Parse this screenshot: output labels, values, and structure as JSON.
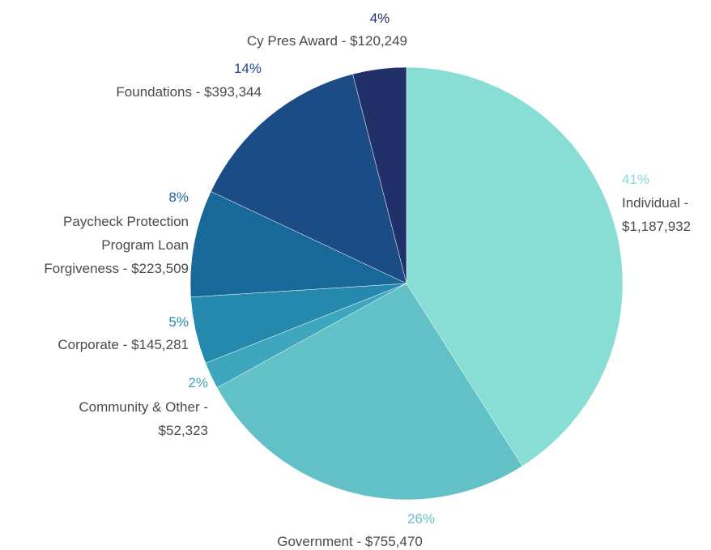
{
  "chart_data": {
    "type": "pie",
    "categories": [
      "Individual -\n$1,187,932",
      "Government - $755,470",
      "Community & Other -\n$52,323",
      "Corporate - $145,281",
      "Paycheck Protection\nProgram Loan\nForgiveness - $223,509",
      "Foundations - $393,344",
      "Cy Pres Award - $120,249"
    ],
    "values": [
      41,
      26,
      2,
      5,
      8,
      14,
      4
    ],
    "value_labels": [
      "41%",
      "26%",
      "2%",
      "5%",
      "8%",
      "14%",
      "4%"
    ],
    "colors": [
      "#88ddd5",
      "#62c1c7",
      "#3ea6bd",
      "#2589ae",
      "#18689a",
      "#1b4c86",
      "#22306a"
    ]
  }
}
